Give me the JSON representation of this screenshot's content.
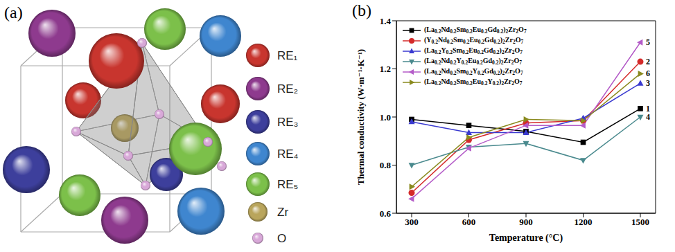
{
  "diagram": {
    "panel": "(a)",
    "legend": [
      {
        "label": "RE₁",
        "color": "#c8352e"
      },
      {
        "label": "RE₂",
        "color": "#8e3a8e"
      },
      {
        "label": "RE₃",
        "color": "#3d3f9c"
      },
      {
        "label": "RE₄",
        "color": "#3f86cf"
      },
      {
        "label": "RE₅",
        "color": "#7cc04a"
      },
      {
        "label": "Zr",
        "color": "#b9a55c"
      },
      {
        "label": "O",
        "color": "#d8a8d8"
      }
    ]
  },
  "chart_data": {
    "panel": "(b)",
    "type": "line",
    "x": [
      300,
      600,
      900,
      1200,
      1500
    ],
    "xlim": [
      220,
      1580
    ],
    "xticks": [
      300,
      600,
      900,
      1200,
      1500
    ],
    "ylim": [
      0.6,
      1.4
    ],
    "yticks": [
      0.6,
      0.8,
      {
        "value": 1,
        "label": "1.0"
      },
      1.2,
      1.4
    ],
    "x_label": "Temperature (°C)",
    "y_label": "Thermal conductivity (W·m⁻¹·K⁻¹)",
    "legend": "upper left",
    "series": [
      {
        "name": "(La0.2Nd0.2Sm0.2Eu0.2Gd0.2)2Zr2O7",
        "label": "1",
        "color": "#000000",
        "marker": "square",
        "values": [
          0.99,
          0.965,
          0.94,
          0.895,
          1.035
        ]
      },
      {
        "name": "(Y0.2Nd0.2Sm0.2Eu0.2Gd0.2)2Zr2O7",
        "label": "2",
        "color": "#d42a2a",
        "marker": "circle",
        "values": [
          0.685,
          0.905,
          0.975,
          0.985,
          1.23
        ]
      },
      {
        "name": "(La0.2Y0.2Sm0.2Eu0.2Gd0.2)2Zr2O7",
        "label": "3",
        "color": "#3a3ad0",
        "marker": "triangle-up",
        "values": [
          0.98,
          0.935,
          0.935,
          0.995,
          1.14
        ]
      },
      {
        "name": "(La0.2Nd0.2Y0.2Eu0.2Gd0.2)2Zr2O7",
        "label": "4",
        "color": "#4a8a8e",
        "marker": "triangle-down",
        "values": [
          0.8,
          0.875,
          0.89,
          0.82,
          1.0
        ]
      },
      {
        "name": "(La0.2Nd0.2Sm0.2Y0.2Gd0.2)2Zr2O7",
        "label": "5",
        "color": "#b45cc8",
        "marker": "triangle-left",
        "values": [
          0.66,
          0.87,
          0.965,
          0.965,
          1.31
        ]
      },
      {
        "name": "(La0.2Nd0.2Sm0.2Eu0.2Y0.2)2Zr2O7",
        "label": "6",
        "color": "#8a8a1e",
        "marker": "triangle-right",
        "values": [
          0.71,
          0.915,
          0.99,
          0.985,
          1.18
        ]
      }
    ]
  }
}
